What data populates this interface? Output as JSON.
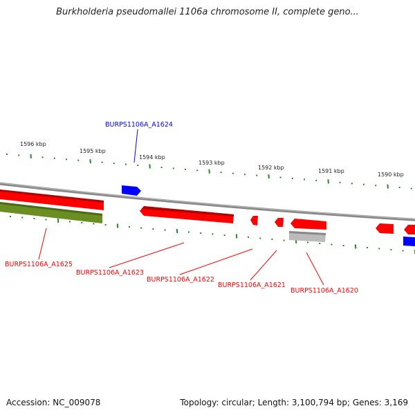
{
  "title": "Burkholderia pseudomallei 1106a chromosome II, complete geno...",
  "scale_labels": [
    "1596 kbp",
    "1595 kbp",
    "1594 kbp",
    "1593 kbp",
    "1592 kbp",
    "1591 kbp",
    "1590 kbp"
  ],
  "genes": {
    "a1624": "BURPS1106A_A1624",
    "a1625": "BURPS1106A_A1625",
    "a1623": "BURPS1106A_A1623",
    "a1622": "BURPS1106A_A1622",
    "a1621": "BURPS1106A_A1621",
    "a1620": "BURPS1106A_A1620"
  },
  "colors": {
    "forward": "#0000ff",
    "reverse": "#ff0000",
    "rna": "#6b8e23",
    "pseudo": "#bbbbbb",
    "ticks": "#228b22",
    "backbone": "#777777"
  },
  "footer": {
    "accession": "Accession: NC_009078",
    "summary": "Topology: circular; Length: 3,100,794 bp; Genes: 3,169"
  }
}
